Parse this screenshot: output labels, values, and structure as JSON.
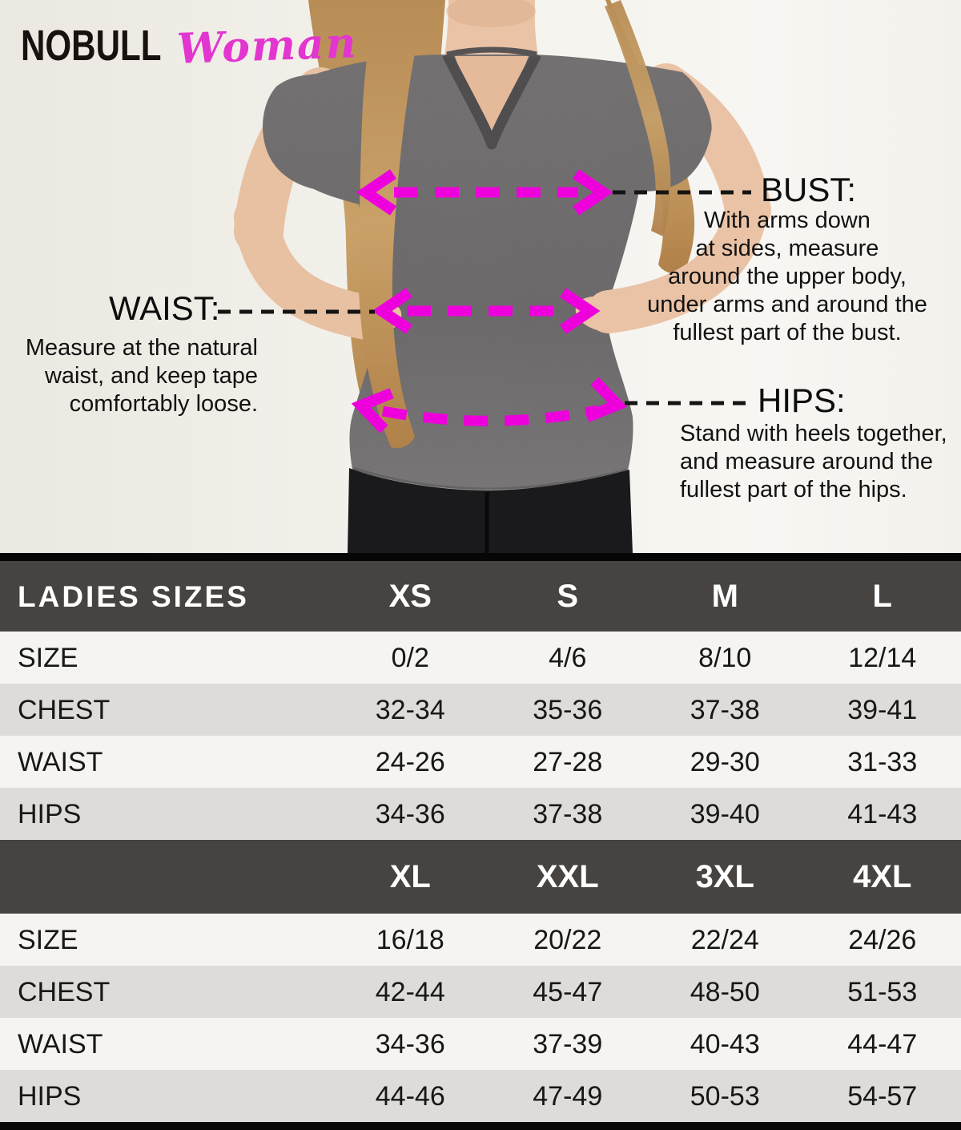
{
  "logo": {
    "brand": "NOBULL",
    "sub": "Woman"
  },
  "annotations": {
    "bust": {
      "title": "BUST:",
      "desc": "With arms down\nat sides, measure\naround the upper body,\nunder arms and around the\nfullest part of the bust."
    },
    "waist": {
      "title": "WAIST:",
      "desc": "Measure at the natural\nwaist, and keep tape\ncomfortably loose."
    },
    "hips": {
      "title": "HIPS:",
      "desc": "Stand with heels together,\nand measure around the\nfullest part of the hips."
    }
  },
  "table": {
    "sections": [
      {
        "header": [
          "LADIES SIZES",
          "XS",
          "S",
          "M",
          "L"
        ],
        "rows": [
          [
            "SIZE",
            "0/2",
            "4/6",
            "8/10",
            "12/14"
          ],
          [
            "CHEST",
            "32-34",
            "35-36",
            "37-38",
            "39-41"
          ],
          [
            "WAIST",
            "24-26",
            "27-28",
            "29-30",
            "31-33"
          ],
          [
            "HIPS",
            "34-36",
            "37-38",
            "39-40",
            "41-43"
          ]
        ]
      },
      {
        "header": [
          "",
          "XL",
          "XXL",
          "3XL",
          "4XL"
        ],
        "rows": [
          [
            "SIZE",
            "16/18",
            "20/22",
            "22/24",
            "24/26"
          ],
          [
            "CHEST",
            "42-44",
            "45-47",
            "48-50",
            "51-53"
          ],
          [
            "WAIST",
            "34-36",
            "37-39",
            "40-43",
            "44-47"
          ],
          [
            "HIPS",
            "44-46",
            "47-49",
            "50-53",
            "54-57"
          ]
        ]
      }
    ]
  },
  "colors": {
    "accent_pink": "#ee00dd",
    "logo_pink": "#e335cf",
    "header_bg": "#474341",
    "row_light": "#f5f4f1",
    "row_gray": "#dedcd9"
  }
}
